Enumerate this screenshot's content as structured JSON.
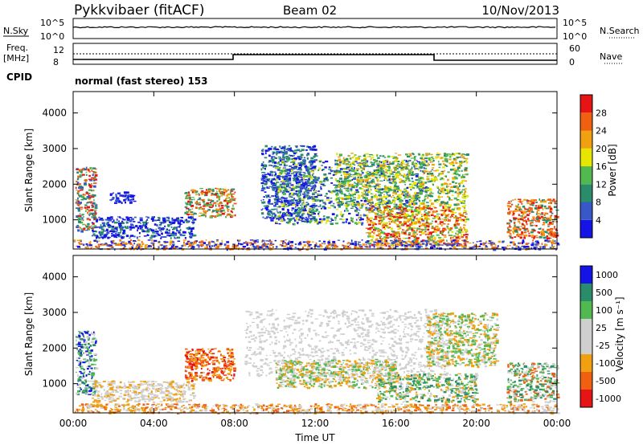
{
  "header": {
    "title": "Pykkvibaer (fitACF)",
    "beam": "Beam 02",
    "date": "10/Nov/2013"
  },
  "panels": {
    "nsky": {
      "left_label": "N.Sky",
      "right_label": "N.Search",
      "left_ticks": [
        "10^5",
        "10^0"
      ],
      "right_ticks": [
        "10^5",
        "10^0"
      ]
    },
    "freq": {
      "left_label_1": "Freq.",
      "left_label_2": "[MHz]",
      "right_label": "Nave",
      "left_ticks": [
        "12",
        "8"
      ],
      "right_ticks": [
        "60",
        "0"
      ]
    },
    "cpid": {
      "label": "CPID",
      "text": "normal (fast stereo) 153"
    }
  },
  "colors": {
    "power": [
      "#1414e6",
      "#3858c8",
      "#2a8c6a",
      "#52b850",
      "#e6e600",
      "#f0a010",
      "#f06010",
      "#e61414"
    ],
    "velocity": [
      "#e61414",
      "#f06010",
      "#f0a010",
      "#cfcfcf",
      "#cfcfcf",
      "#52b850",
      "#2a8c6a",
      "#1414e6"
    ]
  },
  "chart_data": [
    {
      "type": "heatmap",
      "name": "power",
      "ylabel": "Slant Range [km]",
      "yticks": [
        1000,
        2000,
        3000,
        4000
      ],
      "ylim": [
        180,
        4600
      ],
      "xticks": [
        "00:00",
        "04:00",
        "08:00",
        "12:00",
        "16:00",
        "20:00",
        "00:00"
      ],
      "xlim_hours": [
        0,
        24
      ],
      "colorbar_label": "Power [dB]",
      "colorbar_ticks": [
        "4",
        "8",
        "12",
        "16",
        "20",
        "24",
        "28"
      ],
      "regions": [
        {
          "t0": 0.1,
          "t1": 1.1,
          "r0": 700,
          "r1": 2500,
          "colors": [
            2,
            3,
            6,
            7,
            1
          ]
        },
        {
          "t0": 1.8,
          "t1": 3.0,
          "r0": 1500,
          "r1": 1800,
          "colors": [
            0,
            1
          ]
        },
        {
          "t0": 0.9,
          "t1": 6.0,
          "r0": 500,
          "r1": 1100,
          "colors": [
            0,
            1,
            0,
            2
          ]
        },
        {
          "t0": 5.5,
          "t1": 8.0,
          "r0": 1100,
          "r1": 1900,
          "colors": [
            2,
            3,
            5,
            6,
            7
          ]
        },
        {
          "t0": 9.3,
          "t1": 12.0,
          "r0": 1000,
          "r1": 3100,
          "colors": [
            0,
            1,
            2
          ]
        },
        {
          "t0": 10.0,
          "t1": 17.5,
          "r0": 900,
          "r1": 2700,
          "colors": [
            0,
            1,
            2,
            3,
            4
          ]
        },
        {
          "t0": 13.0,
          "t1": 19.5,
          "r0": 1400,
          "r1": 2900,
          "colors": [
            2,
            3,
            4,
            5
          ]
        },
        {
          "t0": 14.5,
          "t1": 19.5,
          "r0": 300,
          "r1": 1400,
          "colors": [
            5,
            6,
            7,
            3,
            4
          ]
        },
        {
          "t0": 21.5,
          "t1": 24.0,
          "r0": 500,
          "r1": 1600,
          "colors": [
            6,
            7,
            5,
            2
          ]
        },
        {
          "t0": 0.0,
          "t1": 24.0,
          "r0": 190,
          "r1": 450,
          "colors": [
            0,
            1,
            5,
            6
          ]
        }
      ]
    },
    {
      "type": "heatmap",
      "name": "velocity",
      "ylabel": "Slant Range [km]",
      "yticks": [
        1000,
        2000,
        3000,
        4000
      ],
      "ylim": [
        180,
        4600
      ],
      "xticks": [
        "00:00",
        "04:00",
        "08:00",
        "12:00",
        "16:00",
        "20:00",
        "00:00"
      ],
      "xlim_hours": [
        0,
        24
      ],
      "xlabel": "Time UT",
      "colorbar_label": "Velocity [m s⁻¹]",
      "colorbar_ticks": [
        "-1000",
        "-500",
        "-100",
        "-25",
        "25",
        "100",
        "500",
        "1000"
      ],
      "regions": [
        {
          "t0": 0.1,
          "t1": 1.1,
          "r0": 700,
          "r1": 2500,
          "colors": [
            6,
            5,
            7,
            3
          ]
        },
        {
          "t0": 0.9,
          "t1": 6.0,
          "r0": 500,
          "r1": 1100,
          "colors": [
            3,
            4,
            2
          ]
        },
        {
          "t0": 5.5,
          "t1": 8.0,
          "r0": 1100,
          "r1": 2000,
          "colors": [
            1,
            2,
            0
          ]
        },
        {
          "t0": 8.5,
          "t1": 18.5,
          "r0": 1200,
          "r1": 3100,
          "colors": [
            3,
            4
          ]
        },
        {
          "t0": 10.0,
          "t1": 16.0,
          "r0": 900,
          "r1": 1700,
          "colors": [
            3,
            2,
            5
          ]
        },
        {
          "t0": 15.0,
          "t1": 20.0,
          "r0": 500,
          "r1": 1300,
          "colors": [
            5,
            6,
            2,
            3
          ]
        },
        {
          "t0": 17.5,
          "t1": 21.0,
          "r0": 1500,
          "r1": 3000,
          "colors": [
            5,
            3,
            2
          ]
        },
        {
          "t0": 21.5,
          "t1": 24.0,
          "r0": 500,
          "r1": 1600,
          "colors": [
            5,
            6,
            1,
            3
          ]
        },
        {
          "t0": 0.0,
          "t1": 24.0,
          "r0": 190,
          "r1": 450,
          "colors": [
            3,
            2,
            1
          ]
        }
      ]
    }
  ]
}
